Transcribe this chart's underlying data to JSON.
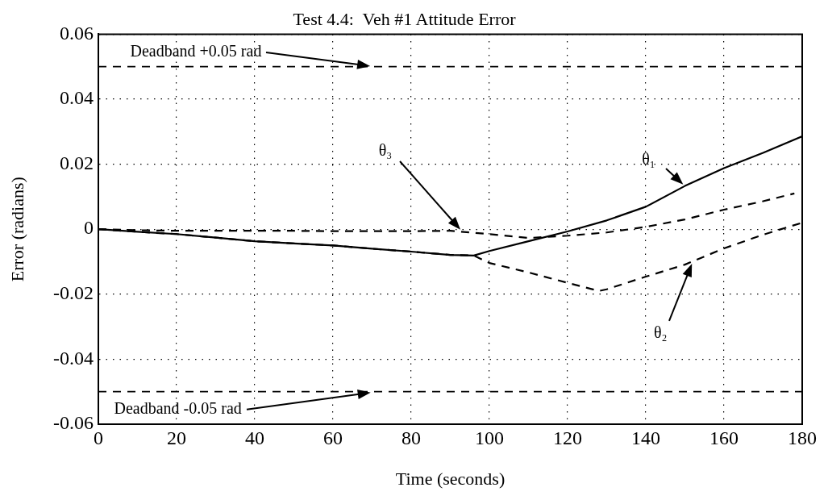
{
  "chart_data": {
    "type": "line",
    "title": "Test 4.4:  Veh #1 Attitude Error",
    "xlabel": "Time (seconds)",
    "ylabel": "Error (radians)",
    "xlim": [
      0,
      180
    ],
    "xticks": [
      0,
      20,
      40,
      60,
      80,
      100,
      120,
      140,
      160,
      180
    ],
    "ylim": [
      -0.06,
      0.06
    ],
    "yticks": [
      -0.06,
      -0.04,
      -0.02,
      0,
      0.02,
      0.04,
      0.06
    ],
    "grid": true,
    "legend": false,
    "series": [
      {
        "name": "θ₁",
        "color": "#000000",
        "line_style": "solid",
        "x": [
          0,
          10,
          20,
          30,
          40,
          50,
          60,
          70,
          80,
          90,
          96,
          100,
          110,
          120,
          130,
          140,
          150,
          160,
          170,
          180
        ],
        "values": [
          0,
          -0.0008,
          -0.0015,
          -0.0026,
          -0.0037,
          -0.0044,
          -0.005,
          -0.006,
          -0.0069,
          -0.0079,
          -0.0081,
          -0.0067,
          -0.0037,
          -0.0007,
          0.0027,
          0.0069,
          0.0133,
          0.0188,
          0.0235,
          0.0286
        ]
      },
      {
        "name": "θ₂",
        "color": "#000000",
        "line_style": "dashed",
        "x": [
          0,
          10,
          20,
          30,
          40,
          50,
          60,
          70,
          80,
          90,
          96,
          100,
          110,
          120,
          128,
          130,
          140,
          150,
          160,
          170,
          180
        ],
        "values": [
          0,
          -0.0008,
          -0.0015,
          -0.0026,
          -0.0037,
          -0.0044,
          -0.005,
          -0.006,
          -0.0069,
          -0.0079,
          -0.0081,
          -0.0104,
          -0.0133,
          -0.0165,
          -0.019,
          -0.0185,
          -0.0146,
          -0.0109,
          -0.0059,
          -0.0017,
          0.002
        ]
      },
      {
        "name": "θ₃",
        "color": "#000000",
        "line_style": "dashed",
        "x": [
          0,
          10,
          20,
          30,
          40,
          50,
          60,
          70,
          80,
          90,
          100,
          110,
          120,
          130,
          140,
          150,
          160,
          170,
          178
        ],
        "values": [
          0,
          -0.0003,
          -0.0005,
          -0.0005,
          -0.0005,
          -0.0005,
          -0.0006,
          -0.0006,
          -0.0006,
          -0.0005,
          -0.0015,
          -0.0027,
          -0.002,
          -0.001,
          0.0007,
          0.003,
          0.006,
          0.0086,
          0.011
        ]
      }
    ],
    "ref_lines": [
      {
        "axis": "y",
        "value": 0.05,
        "label": "Deadband +0.05 rad",
        "color": "#000000",
        "line_style": "dashed"
      },
      {
        "axis": "y",
        "value": -0.05,
        "label": "Deadband -0.05 rad",
        "color": "#000000",
        "line_style": "dashed"
      }
    ]
  }
}
